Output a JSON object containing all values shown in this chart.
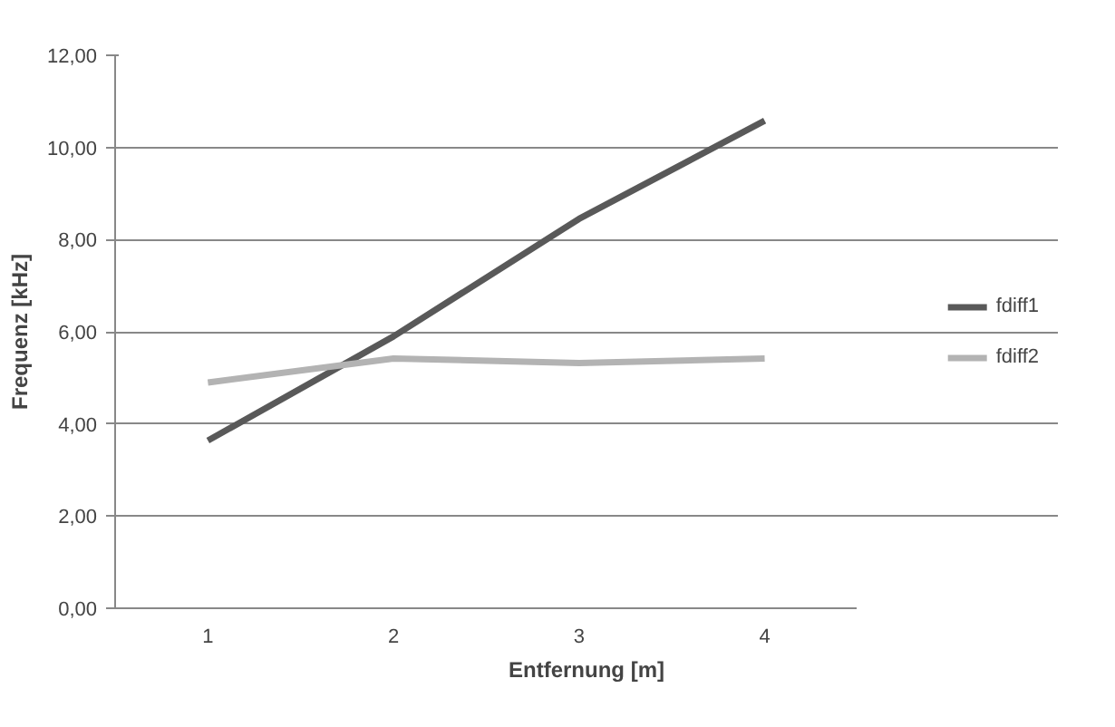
{
  "chart_data": {
    "type": "line",
    "xlabel": "Entfernung [m]",
    "ylabel": "Frequenz [kHz]",
    "categories": [
      "1",
      "2",
      "3",
      "4"
    ],
    "series": [
      {
        "name": "fdiff1",
        "color": "#595959",
        "values": [
          3.64,
          5.9,
          8.45,
          10.58
        ]
      },
      {
        "name": "fdiff2",
        "color": "#b3b3b3",
        "values": [
          4.9,
          5.42,
          5.32,
          5.42
        ]
      }
    ],
    "ylim": [
      0,
      12
    ],
    "yticks": [
      {
        "value": 0,
        "label": "0,00"
      },
      {
        "value": 2,
        "label": "2,00"
      },
      {
        "value": 4,
        "label": "4,00"
      },
      {
        "value": 6,
        "label": "6,00"
      },
      {
        "value": 8,
        "label": "8,00"
      },
      {
        "value": 10,
        "label": "10,00"
      },
      {
        "value": 12,
        "label": "12,00"
      }
    ],
    "grid": "y",
    "legend": "right",
    "line_style": "solid"
  }
}
